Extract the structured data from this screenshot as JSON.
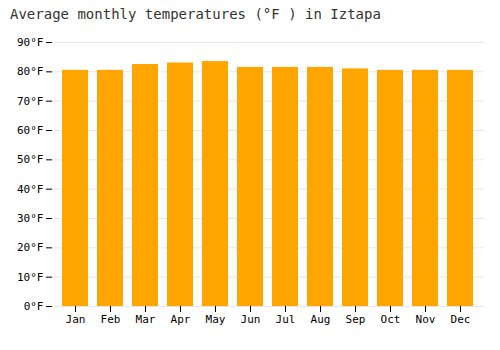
{
  "chart_data": {
    "type": "bar",
    "title": "Average monthly temperatures (°F ) in Iztapa",
    "categories": [
      "Jan",
      "Feb",
      "Mar",
      "Apr",
      "May",
      "Jun",
      "Jul",
      "Aug",
      "Sep",
      "Oct",
      "Nov",
      "Dec"
    ],
    "values": [
      80.5,
      80.5,
      82.5,
      83.0,
      83.5,
      81.5,
      81.5,
      81.5,
      81.0,
      80.5,
      80.5,
      80.5
    ],
    "color": "#FFA500",
    "ylim": [
      0,
      90
    ],
    "yticks": [
      {
        "value": 0,
        "label": "0°F"
      },
      {
        "value": 10,
        "label": "10°F"
      },
      {
        "value": 20,
        "label": "20°F"
      },
      {
        "value": 30,
        "label": "30°F"
      },
      {
        "value": 40,
        "label": "40°F"
      },
      {
        "value": 50,
        "label": "50°F"
      },
      {
        "value": 60,
        "label": "60°F"
      },
      {
        "value": 70,
        "label": "70°F"
      },
      {
        "value": 80,
        "label": "80°F"
      },
      {
        "value": 90,
        "label": "90°F"
      }
    ],
    "grid": true
  }
}
